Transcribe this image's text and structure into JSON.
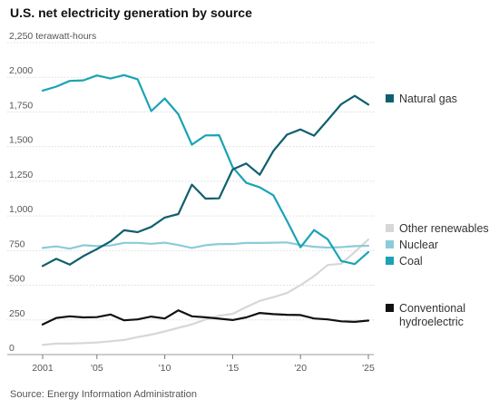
{
  "title": "U.S. net electricity generation by source",
  "source": "Source: Energy Information Administration",
  "chart_data": {
    "type": "line",
    "title": "U.S. net electricity generation by source",
    "ylabel": "terawatt-hours",
    "ylim": [
      0,
      2250
    ],
    "xlim": [
      2001,
      2025
    ],
    "grid": true,
    "y_ticks": [
      {
        "value": 0,
        "label": "0"
      },
      {
        "value": 250,
        "label": "250"
      },
      {
        "value": 500,
        "label": "500"
      },
      {
        "value": 750,
        "label": "750"
      },
      {
        "value": 1000,
        "label": "1,000"
      },
      {
        "value": 1250,
        "label": "1,250"
      },
      {
        "value": 1500,
        "label": "1,500"
      },
      {
        "value": 1750,
        "label": "1,750"
      },
      {
        "value": 2000,
        "label": "2,000"
      },
      {
        "value": 2250,
        "label": "2,250 terawatt-hours"
      }
    ],
    "x_ticks": [
      {
        "value": 2001,
        "label": "2001"
      },
      {
        "value": 2005,
        "label": "'05"
      },
      {
        "value": 2010,
        "label": "'10"
      },
      {
        "value": 2015,
        "label": "'15"
      },
      {
        "value": 2020,
        "label": "'20"
      },
      {
        "value": 2025,
        "label": "'25"
      }
    ],
    "x": [
      2001,
      2002,
      2003,
      2004,
      2005,
      2006,
      2007,
      2008,
      2009,
      2010,
      2011,
      2012,
      2013,
      2014,
      2015,
      2016,
      2017,
      2018,
      2019,
      2020,
      2021,
      2022,
      2023,
      2024,
      2025
    ],
    "series": [
      {
        "name": "Natural gas",
        "color": "#0f5f6e",
        "values": [
          639,
          691,
          649,
          710,
          761,
          816,
          897,
          883,
          921,
          988,
          1014,
          1226,
          1125,
          1127,
          1335,
          1378,
          1297,
          1469,
          1586,
          1624,
          1579,
          1691,
          1806,
          1866,
          1803
        ]
      },
      {
        "name": "Nuclear",
        "color": "#8ccbd9",
        "values": [
          769,
          780,
          764,
          789,
          782,
          787,
          806,
          806,
          799,
          807,
          790,
          769,
          789,
          797,
          797,
          806,
          805,
          807,
          809,
          790,
          778,
          772,
          775,
          782,
          785
        ]
      },
      {
        "name": "Coal",
        "color": "#1aa3b5",
        "values": [
          1904,
          1933,
          1974,
          1978,
          2013,
          1991,
          2016,
          1986,
          1756,
          1847,
          1733,
          1514,
          1581,
          1582,
          1352,
          1239,
          1206,
          1149,
          965,
          774,
          898,
          832,
          675,
          653,
          740
        ]
      },
      {
        "name": "Other renewables",
        "color": "#d7d7d7",
        "values": [
          70,
          79,
          79,
          83,
          87,
          96,
          105,
          126,
          144,
          167,
          193,
          218,
          253,
          280,
          294,
          343,
          388,
          414,
          444,
          501,
          566,
          646,
          655,
          740,
          830
        ]
      },
      {
        "name": "Conventional hydroelectric",
        "color": "#111111",
        "values": [
          217,
          264,
          276,
          268,
          270,
          289,
          247,
          254,
          274,
          260,
          319,
          276,
          269,
          259,
          249,
          268,
          300,
          292,
          287,
          285,
          260,
          254,
          240,
          236,
          245
        ]
      }
    ]
  },
  "legend": [
    {
      "key": "natural_gas",
      "lines": [
        "Natural gas"
      ],
      "color": "#0f5f6e"
    },
    {
      "key": "other_renewables",
      "lines": [
        "Other renewables"
      ],
      "color": "#d7d7d7"
    },
    {
      "key": "nuclear",
      "lines": [
        "Nuclear"
      ],
      "color": "#8ccbd9"
    },
    {
      "key": "coal",
      "lines": [
        "Coal"
      ],
      "color": "#1aa3b5"
    },
    {
      "key": "hydro",
      "lines": [
        "Conventional",
        "hydroelectric"
      ],
      "color": "#111111"
    }
  ]
}
